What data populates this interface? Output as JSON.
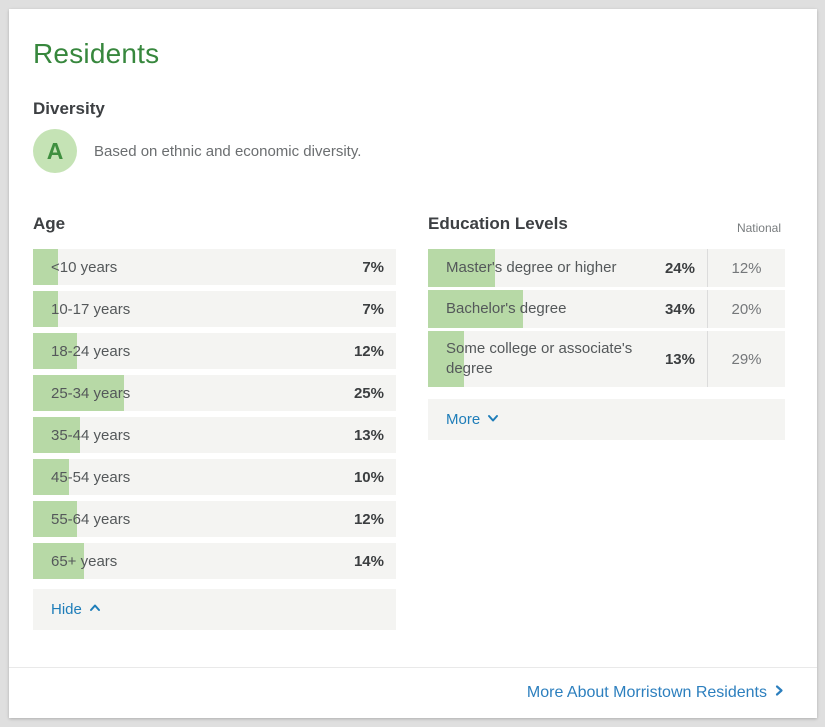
{
  "page": {
    "title": "Residents"
  },
  "diversity": {
    "heading": "Diversity",
    "grade": "A",
    "description": "Based on ethnic and economic diversity."
  },
  "age": {
    "heading": "Age",
    "toggle_label": "Hide",
    "rows": [
      {
        "label": "<10 years",
        "value": "7%",
        "pct": 7
      },
      {
        "label": "10-17 years",
        "value": "7%",
        "pct": 7
      },
      {
        "label": "18-24 years",
        "value": "12%",
        "pct": 12
      },
      {
        "label": "25-34 years",
        "value": "25%",
        "pct": 25
      },
      {
        "label": "35-44 years",
        "value": "13%",
        "pct": 13
      },
      {
        "label": "45-54 years",
        "value": "10%",
        "pct": 10
      },
      {
        "label": "55-64 years",
        "value": "12%",
        "pct": 12
      },
      {
        "label": "65+ years",
        "value": "14%",
        "pct": 14
      }
    ]
  },
  "education": {
    "heading": "Education Levels",
    "national_header": "National",
    "toggle_label": "More",
    "rows": [
      {
        "label": "Master's degree or higher",
        "value": "24%",
        "national": "12%",
        "pct": 24
      },
      {
        "label": "Bachelor's degree",
        "value": "34%",
        "national": "20%",
        "pct": 34
      },
      {
        "label": "Some college or associate's degree",
        "value": "13%",
        "national": "29%",
        "pct": 13
      }
    ]
  },
  "footer": {
    "link_label": "More About Morristown Residents"
  },
  "colors": {
    "brand_green": "#37873d",
    "grade_badge_bg": "#c5e3b5",
    "grade_letter": "#3f8f3f",
    "bar_green": "#b7d9a6",
    "row_bg": "#f4f4f2",
    "link_blue": "#1e7db9",
    "footer_link_blue": "#2c7fbe"
  }
}
